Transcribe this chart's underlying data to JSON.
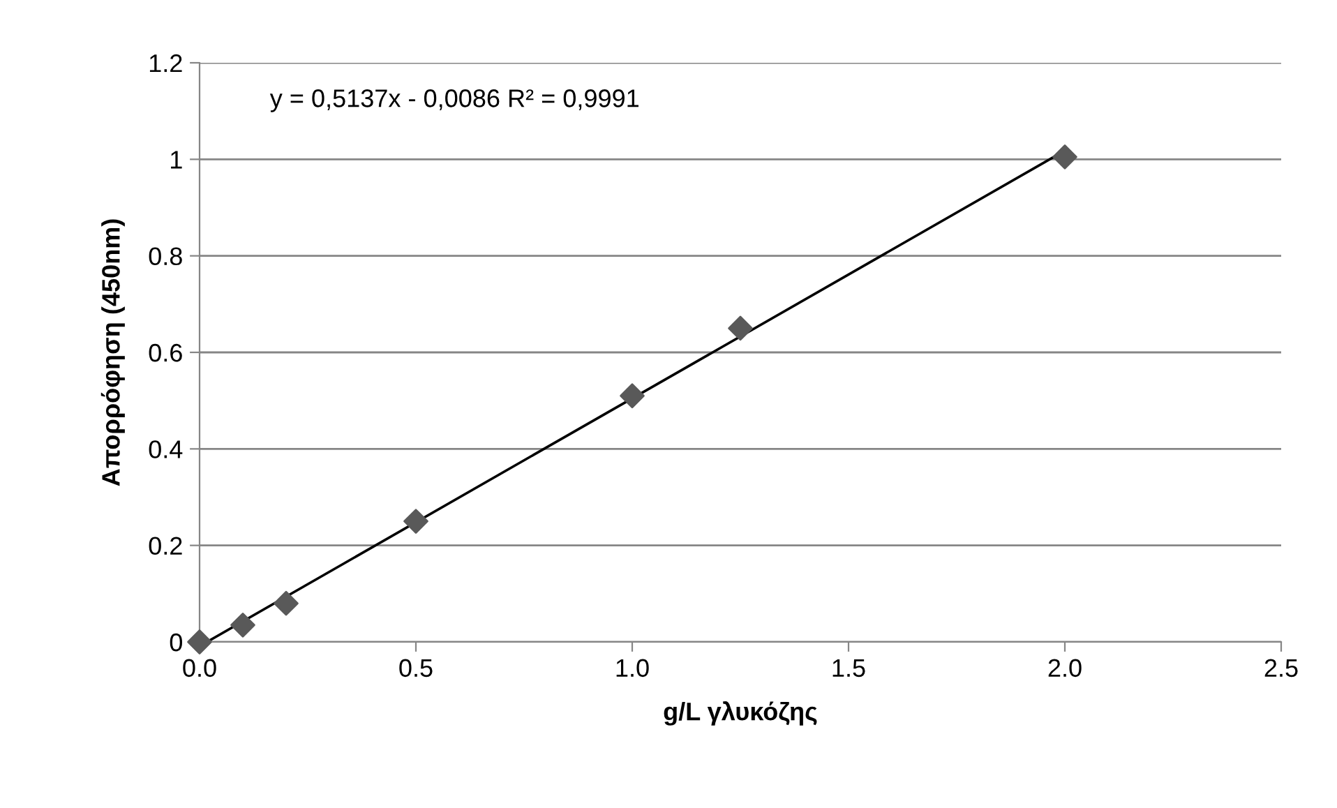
{
  "chart_data": {
    "type": "scatter",
    "xlabel": "g/L γλυκόζης",
    "ylabel": "Απορρόφηση (450nm)",
    "annotations": [
      "y = 0,5137x - 0,0086 R² = 0,9991"
    ],
    "series": [
      {
        "color": "#595959",
        "marker": "diamond",
        "x": [
          0,
          0.1,
          0.2,
          0.5,
          1.0,
          1.25,
          2.0
        ],
        "values": [
          0,
          0.035,
          0.08,
          0.25,
          0.51,
          0.65,
          1.005
        ]
      },
      {
        "type": "line",
        "color": "#000000",
        "marker": "none",
        "line_style": "solid",
        "x": [
          0.017,
          2.0
        ],
        "values": [
          0,
          1.018
        ]
      }
    ],
    "xlim": [
      0,
      2.5
    ],
    "xticks": [
      {
        "value": 0,
        "label": "0.0"
      },
      {
        "value": 0.5,
        "label": "0.5"
      },
      {
        "value": 1.0,
        "label": "1.0"
      },
      {
        "value": 1.5,
        "label": "1.5"
      },
      {
        "value": 2.0,
        "label": "2.0"
      },
      {
        "value": 2.5,
        "label": "2.5"
      }
    ],
    "ylim": [
      0,
      1.2
    ],
    "yticks": [
      0,
      0.2,
      0.4,
      0.6,
      0.8,
      1,
      1.2
    ],
    "grid": "y",
    "legend": false
  }
}
